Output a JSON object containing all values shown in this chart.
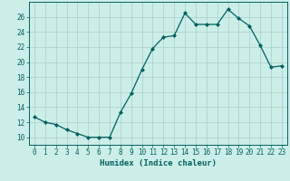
{
  "x": [
    0,
    1,
    2,
    3,
    4,
    5,
    6,
    7,
    8,
    9,
    10,
    11,
    12,
    13,
    14,
    15,
    16,
    17,
    18,
    19,
    20,
    21,
    22,
    23
  ],
  "y": [
    12.7,
    12.0,
    11.7,
    11.0,
    10.5,
    10.0,
    10.0,
    10.0,
    13.3,
    15.8,
    19.0,
    21.8,
    23.3,
    23.5,
    26.5,
    25.0,
    25.0,
    25.0,
    27.0,
    25.8,
    24.8,
    22.2,
    19.3,
    19.5
  ],
  "line_color": "#006060",
  "marker": "D",
  "marker_size": 2,
  "bg_color": "#cceee8",
  "grid_color": "#aacccc",
  "xlabel": "Humidex (Indice chaleur)",
  "xlim": [
    -0.5,
    23.5
  ],
  "ylim": [
    9,
    28
  ],
  "yticks": [
    10,
    12,
    14,
    16,
    18,
    20,
    22,
    24,
    26
  ],
  "xticks": [
    0,
    1,
    2,
    3,
    4,
    5,
    6,
    7,
    8,
    9,
    10,
    11,
    12,
    13,
    14,
    15,
    16,
    17,
    18,
    19,
    20,
    21,
    22,
    23
  ],
  "tick_label_fontsize": 5.5,
  "xlabel_fontsize": 6.5
}
